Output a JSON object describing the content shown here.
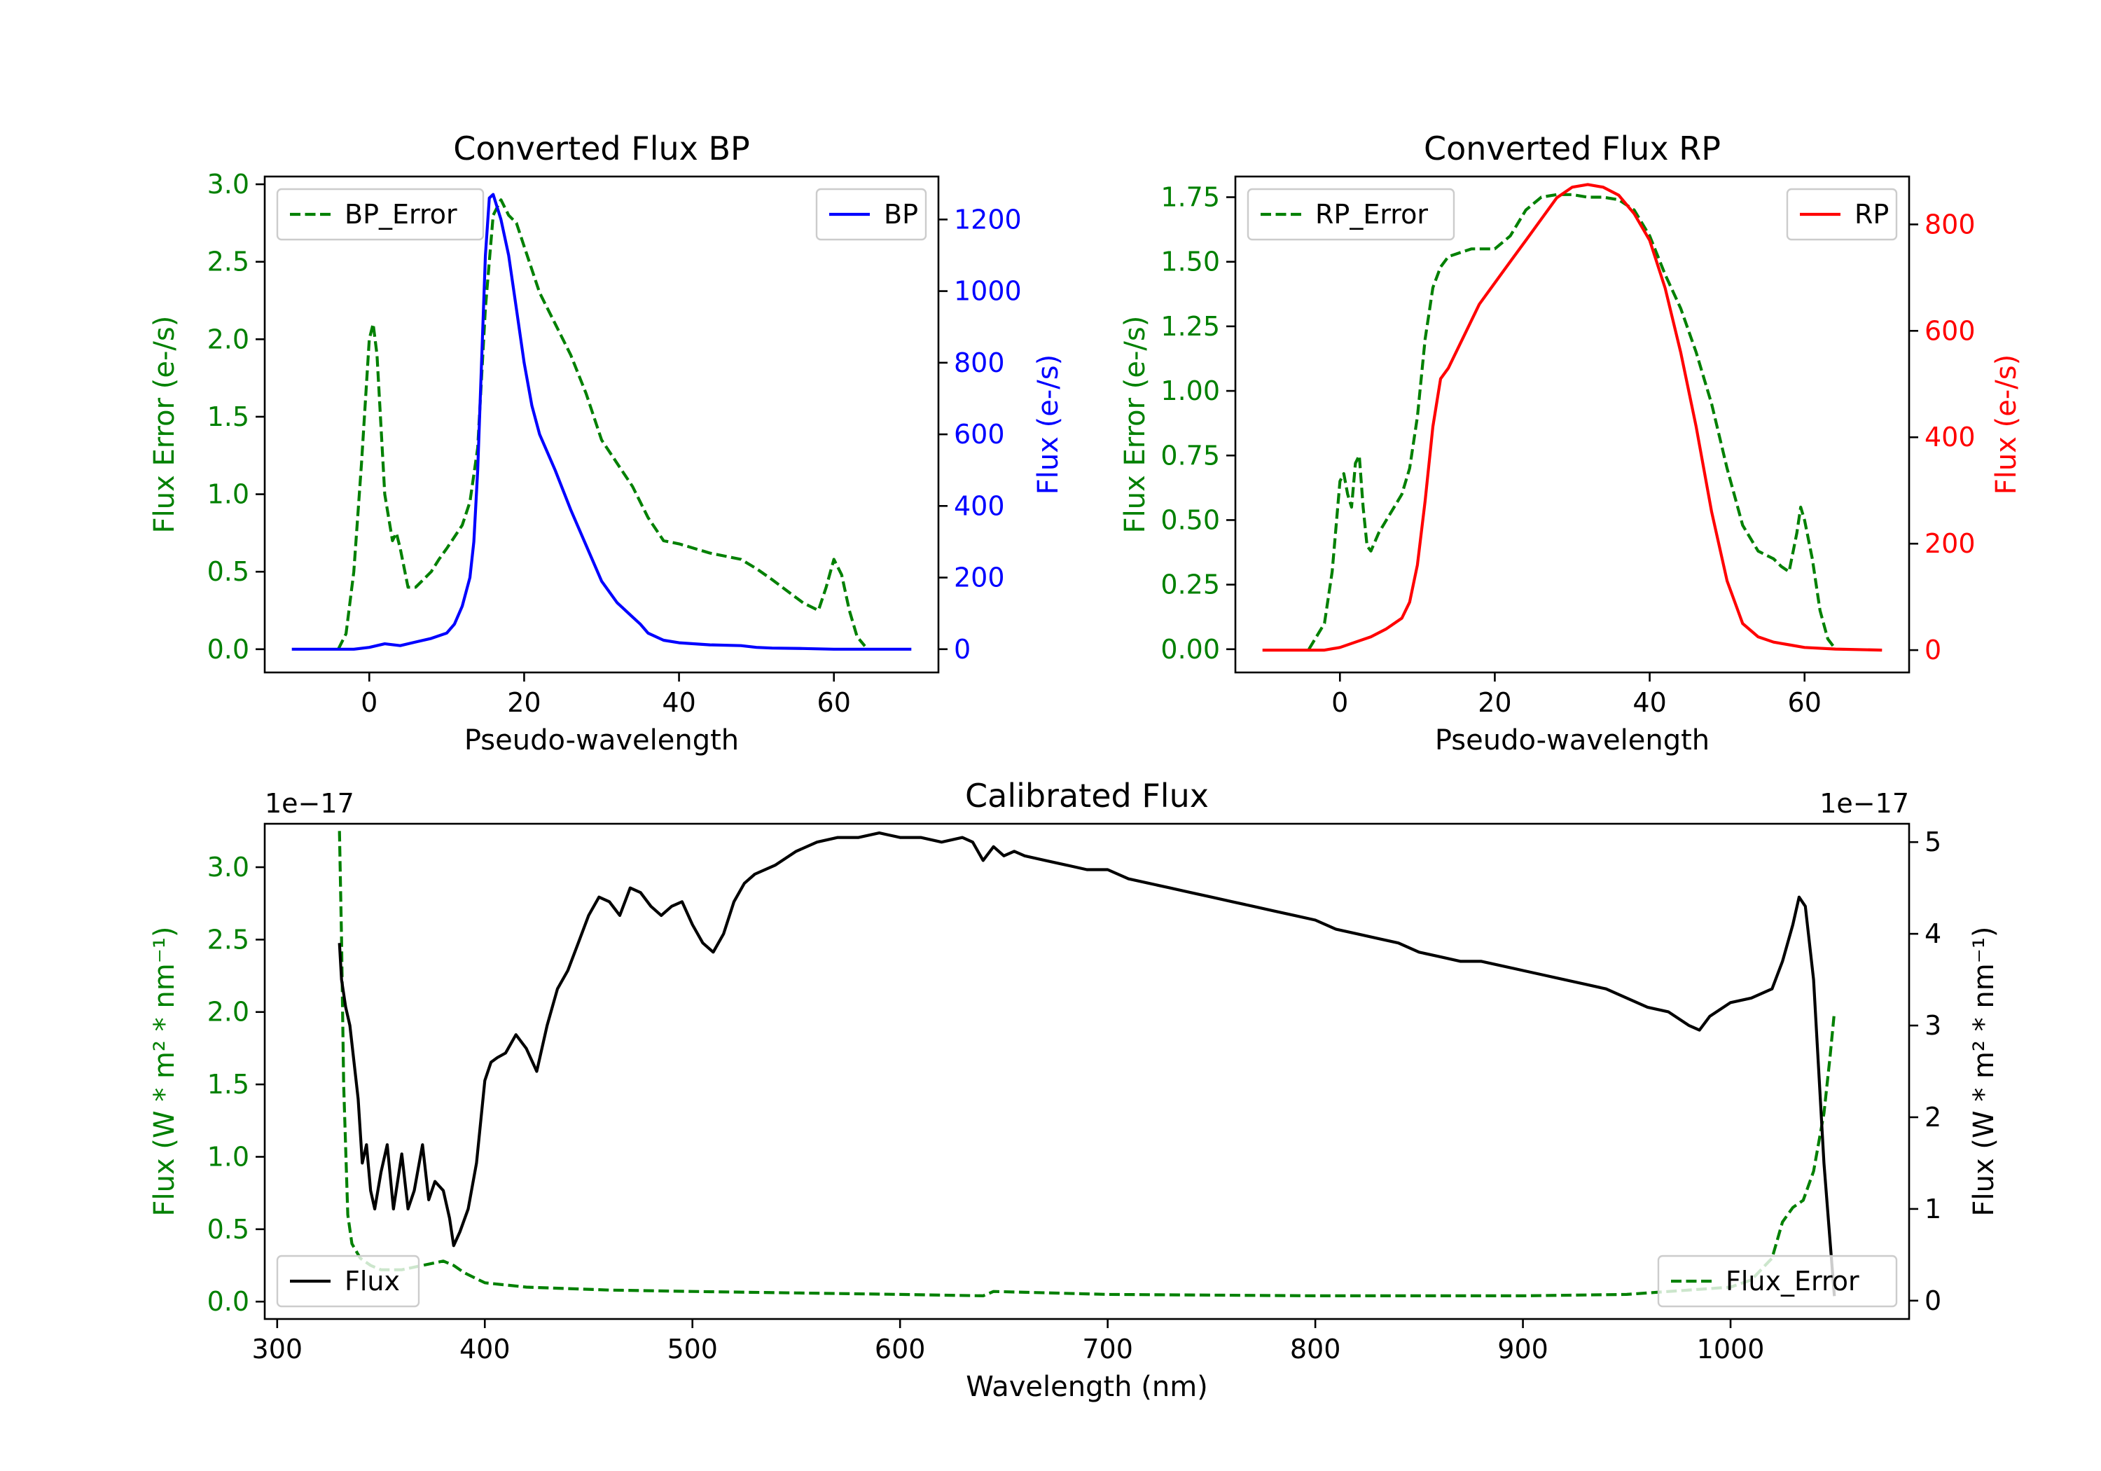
{
  "colors": {
    "error": "#008000",
    "bp": "#0000ff",
    "rp": "#ff0000",
    "flux": "#000000"
  },
  "chart_data": [
    {
      "type": "line",
      "title": "Converted Flux BP",
      "xlabel": "Pseudo-wavelength",
      "ylabel_left": "Flux Error (e-/s)",
      "ylabel_right": "Flux (e-/s)",
      "xlim": [
        -13.5,
        73.5
      ],
      "ylim_left": [
        -0.15,
        3.05
      ],
      "ylim_right": [
        -65,
        1320
      ],
      "x_ticks": [
        0,
        20,
        40,
        60
      ],
      "y_ticks_left": [
        0.0,
        0.5,
        1.0,
        1.5,
        2.0,
        2.5,
        3.0
      ],
      "y_ticks_right": [
        0,
        200,
        400,
        600,
        800,
        1000,
        1200
      ],
      "legend_left": {
        "label": "BP_Error",
        "position": "upper left"
      },
      "legend_right": {
        "label": "BP",
        "position": "upper right"
      },
      "series": [
        {
          "name": "BP_Error",
          "axis": "left",
          "color": "#008000",
          "style": "dashed",
          "x": [
            -4,
            -3,
            -2,
            -1,
            0,
            0.5,
            1,
            2,
            3,
            3.5,
            4,
            5,
            6,
            7,
            8,
            9,
            10,
            12,
            13,
            14,
            15,
            16,
            17,
            18,
            19,
            20,
            22,
            24,
            26,
            28,
            30,
            32,
            34,
            36,
            38,
            40,
            44,
            48,
            50,
            52,
            56,
            58,
            59,
            60,
            61,
            62,
            63,
            64
          ],
          "values": [
            0.0,
            0.1,
            0.5,
            1.2,
            2.0,
            2.1,
            1.9,
            1.0,
            0.7,
            0.75,
            0.65,
            0.4,
            0.4,
            0.45,
            0.5,
            0.58,
            0.65,
            0.8,
            0.95,
            1.3,
            2.2,
            2.8,
            2.9,
            2.8,
            2.75,
            2.6,
            2.3,
            2.1,
            1.9,
            1.65,
            1.35,
            1.2,
            1.05,
            0.85,
            0.7,
            0.68,
            0.62,
            0.58,
            0.52,
            0.45,
            0.3,
            0.25,
            0.4,
            0.58,
            0.48,
            0.25,
            0.08,
            0.02
          ]
        },
        {
          "name": "BP",
          "axis": "right",
          "color": "#0000ff",
          "style": "solid",
          "x": [
            -10,
            -6,
            -2,
            0,
            2,
            4,
            6,
            8,
            10,
            11,
            12,
            13,
            13.5,
            14,
            14.5,
            15,
            15.5,
            16,
            17,
            18,
            19,
            20,
            21,
            22,
            24,
            26,
            28,
            30,
            32,
            34,
            35,
            36,
            38,
            40,
            44,
            48,
            50,
            52,
            56,
            60,
            64,
            70
          ],
          "values": [
            0,
            0,
            0,
            5,
            15,
            10,
            20,
            30,
            45,
            70,
            120,
            200,
            300,
            500,
            800,
            1100,
            1260,
            1270,
            1200,
            1100,
            950,
            800,
            680,
            600,
            500,
            390,
            290,
            190,
            130,
            90,
            70,
            45,
            25,
            18,
            12,
            10,
            5,
            3,
            2,
            0,
            0,
            0
          ]
        }
      ]
    },
    {
      "type": "line",
      "title": "Converted Flux RP",
      "xlabel": "Pseudo-wavelength",
      "ylabel_left": "Flux Error (e-/s)",
      "ylabel_right": "Flux (e-/s)",
      "xlim": [
        -13.5,
        73.5
      ],
      "ylim_left": [
        -0.09,
        1.83
      ],
      "ylim_right": [
        -42,
        890
      ],
      "x_ticks": [
        0,
        20,
        40,
        60
      ],
      "y_ticks_left": [
        0.0,
        0.25,
        0.5,
        0.75,
        1.0,
        1.25,
        1.5,
        1.75
      ],
      "y_ticks_right": [
        0,
        200,
        400,
        600,
        800
      ],
      "legend_left": {
        "label": "RP_Error",
        "position": "upper left"
      },
      "legend_right": {
        "label": "RP",
        "position": "upper right"
      },
      "series": [
        {
          "name": "RP_Error",
          "axis": "left",
          "color": "#008000",
          "style": "dashed",
          "x": [
            -4,
            -3,
            -2,
            -1,
            0,
            0.5,
            1,
            1.5,
            2,
            2.5,
            3,
            3.5,
            4,
            5,
            6,
            7,
            8,
            9,
            10,
            11,
            12,
            13,
            14,
            15,
            16,
            17,
            18,
            20,
            22,
            24,
            26,
            28,
            30,
            32,
            34,
            36,
            38,
            40,
            42,
            44,
            46,
            48,
            50,
            52,
            54,
            56,
            57,
            58,
            59,
            59.5,
            60,
            61,
            62,
            63,
            64
          ],
          "values": [
            0.0,
            0.05,
            0.1,
            0.3,
            0.65,
            0.68,
            0.6,
            0.55,
            0.72,
            0.75,
            0.55,
            0.4,
            0.38,
            0.45,
            0.5,
            0.55,
            0.6,
            0.7,
            0.9,
            1.2,
            1.4,
            1.48,
            1.52,
            1.53,
            1.54,
            1.55,
            1.55,
            1.55,
            1.6,
            1.7,
            1.75,
            1.76,
            1.76,
            1.75,
            1.75,
            1.74,
            1.7,
            1.6,
            1.45,
            1.32,
            1.15,
            0.95,
            0.7,
            0.48,
            0.38,
            0.35,
            0.32,
            0.3,
            0.45,
            0.55,
            0.5,
            0.35,
            0.15,
            0.04,
            0.0
          ]
        },
        {
          "name": "RP",
          "axis": "right",
          "color": "#ff0000",
          "style": "solid",
          "x": [
            -10,
            -6,
            -2,
            0,
            2,
            4,
            6,
            8,
            9,
            10,
            11,
            12,
            13,
            14,
            16,
            18,
            20,
            22,
            24,
            26,
            28,
            30,
            32,
            34,
            36,
            38,
            40,
            42,
            44,
            46,
            48,
            50,
            52,
            54,
            56,
            58,
            60,
            64,
            70
          ],
          "values": [
            0,
            0,
            0,
            5,
            15,
            25,
            40,
            60,
            90,
            160,
            280,
            420,
            510,
            530,
            590,
            650,
            690,
            730,
            770,
            810,
            850,
            870,
            875,
            870,
            855,
            820,
            770,
            680,
            560,
            420,
            260,
            130,
            50,
            25,
            15,
            10,
            5,
            2,
            0
          ]
        }
      ]
    },
    {
      "type": "line",
      "title": "Calibrated Flux",
      "xlabel": "Wavelength (nm)",
      "ylabel_left": "Flux (W * m² * nm⁻¹)",
      "ylabel_right": "Flux (W * m² * nm⁻¹)",
      "offset_left": "1e−17",
      "offset_right": "1e−17",
      "xlim": [
        294,
        1086
      ],
      "ylim_left": [
        -0.12,
        3.3
      ],
      "ylim_right": [
        -0.2,
        5.2
      ],
      "x_ticks": [
        300,
        400,
        500,
        600,
        700,
        800,
        900,
        1000
      ],
      "y_ticks_left": [
        0.0,
        0.5,
        1.0,
        1.5,
        2.0,
        2.5,
        3.0
      ],
      "y_ticks_right": [
        0,
        1,
        2,
        3,
        4,
        5
      ],
      "legend_left": {
        "label": "Flux",
        "position": "lower left"
      },
      "legend_right": {
        "label": "Flux_Error",
        "position": "lower right"
      },
      "series": [
        {
          "name": "Flux_Error",
          "axis": "left",
          "color": "#008000",
          "style": "dashed",
          "x": [
            330,
            331,
            332,
            334,
            336,
            340,
            345,
            350,
            360,
            370,
            380,
            385,
            390,
            400,
            420,
            440,
            460,
            500,
            550,
            600,
            640,
            645,
            700,
            800,
            900,
            950,
            1000,
            1010,
            1020,
            1025,
            1030,
            1035,
            1040,
            1045,
            1048,
            1050
          ],
          "values": [
            3.25,
            2.5,
            1.5,
            0.6,
            0.4,
            0.3,
            0.25,
            0.22,
            0.22,
            0.25,
            0.28,
            0.25,
            0.2,
            0.13,
            0.1,
            0.09,
            0.08,
            0.07,
            0.06,
            0.05,
            0.04,
            0.07,
            0.05,
            0.04,
            0.04,
            0.05,
            0.1,
            0.15,
            0.3,
            0.55,
            0.65,
            0.7,
            0.9,
            1.3,
            1.7,
            2.0
          ]
        },
        {
          "name": "Flux",
          "axis": "right",
          "color": "#000000",
          "style": "solid",
          "x": [
            330,
            331,
            333,
            335,
            337,
            339,
            341,
            343,
            345,
            347,
            350,
            353,
            356,
            360,
            363,
            366,
            370,
            373,
            376,
            380,
            383,
            385,
            388,
            392,
            396,
            400,
            403,
            406,
            410,
            415,
            420,
            425,
            430,
            435,
            440,
            445,
            450,
            455,
            460,
            465,
            470,
            475,
            480,
            485,
            490,
            495,
            500,
            505,
            510,
            515,
            520,
            525,
            530,
            540,
            550,
            560,
            570,
            580,
            590,
            600,
            610,
            620,
            630,
            635,
            640,
            645,
            650,
            655,
            660,
            670,
            680,
            690,
            700,
            710,
            720,
            730,
            740,
            750,
            760,
            770,
            780,
            790,
            800,
            810,
            820,
            830,
            840,
            850,
            860,
            870,
            880,
            890,
            900,
            910,
            920,
            930,
            940,
            950,
            960,
            970,
            980,
            985,
            990,
            1000,
            1010,
            1020,
            1025,
            1030,
            1033,
            1036,
            1040,
            1045,
            1050
          ],
          "values": [
            3.9,
            3.5,
            3.2,
            3.0,
            2.6,
            2.2,
            1.5,
            1.7,
            1.2,
            1.0,
            1.4,
            1.7,
            1.0,
            1.6,
            1.0,
            1.2,
            1.7,
            1.1,
            1.3,
            1.2,
            0.9,
            0.6,
            0.75,
            1.0,
            1.5,
            2.4,
            2.6,
            2.65,
            2.7,
            2.9,
            2.75,
            2.5,
            3.0,
            3.4,
            3.6,
            3.9,
            4.2,
            4.4,
            4.35,
            4.2,
            4.5,
            4.45,
            4.3,
            4.2,
            4.3,
            4.35,
            4.1,
            3.9,
            3.8,
            4.0,
            4.35,
            4.55,
            4.65,
            4.75,
            4.9,
            5.0,
            5.05,
            5.05,
            5.1,
            5.05,
            5.05,
            5.0,
            5.05,
            5.0,
            4.8,
            4.95,
            4.85,
            4.9,
            4.85,
            4.8,
            4.75,
            4.7,
            4.7,
            4.6,
            4.55,
            4.5,
            4.45,
            4.4,
            4.35,
            4.3,
            4.25,
            4.2,
            4.15,
            4.05,
            4.0,
            3.95,
            3.9,
            3.8,
            3.75,
            3.7,
            3.7,
            3.65,
            3.6,
            3.55,
            3.5,
            3.45,
            3.4,
            3.3,
            3.2,
            3.15,
            3.0,
            2.95,
            3.1,
            3.25,
            3.3,
            3.4,
            3.7,
            4.1,
            4.4,
            4.3,
            3.5,
            1.5,
            0.05
          ]
        }
      ]
    }
  ]
}
